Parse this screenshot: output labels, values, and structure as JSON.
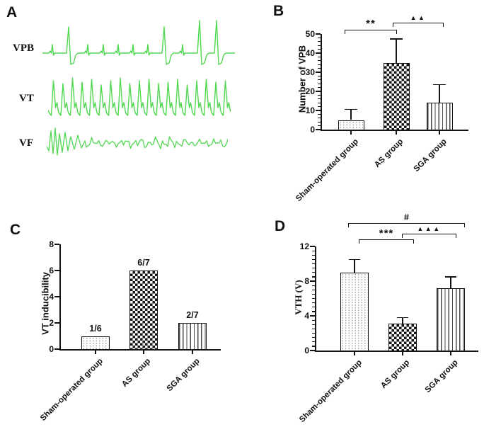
{
  "figure": {
    "background": "#ffffff",
    "axis_color": "#141414",
    "panels": {
      "a": {
        "letter": "A",
        "trace_color": "#50d750",
        "traces": [
          {
            "name": "VPB"
          },
          {
            "name": "VT"
          },
          {
            "name": "VF"
          }
        ]
      },
      "b": {
        "letter": "B"
      },
      "c": {
        "letter": "C"
      },
      "d": {
        "letter": "D"
      }
    }
  },
  "chart_data": [
    {
      "id": "b",
      "type": "bar",
      "panel": "B",
      "title": "",
      "xlabel": "",
      "ylabel": "Number of VPB",
      "categories": [
        "Sham-operated group",
        "AS group",
        "SGA group"
      ],
      "values": [
        5,
        35,
        14
      ],
      "errors_upper": [
        5.5,
        12.5,
        9.5
      ],
      "ylim": [
        0,
        50
      ],
      "yticks": [
        0,
        10,
        20,
        30,
        40,
        50
      ],
      "y_minor_step": 2,
      "grid": false,
      "bar_patterns": [
        "dots",
        "checker",
        "vlines"
      ],
      "significance": [
        {
          "groups": [
            0,
            1
          ],
          "label": "**"
        },
        {
          "groups": [
            1,
            2
          ],
          "label": "▲▲"
        }
      ]
    },
    {
      "id": "c",
      "type": "bar",
      "panel": "C",
      "title": "",
      "xlabel": "",
      "ylabel": "VT inducibility",
      "categories": [
        "Sham-operated group",
        "AS group",
        "SGA  group"
      ],
      "values": [
        1,
        6,
        2
      ],
      "bar_labels": [
        "1/6",
        "6/7",
        "2/7"
      ],
      "ylim": [
        0,
        8
      ],
      "yticks": [
        0,
        2,
        4,
        6,
        8
      ],
      "grid": false,
      "bar_patterns": [
        "dots",
        "checker",
        "vlines"
      ],
      "significance": []
    },
    {
      "id": "d",
      "type": "bar",
      "panel": "D",
      "title": "",
      "xlabel": "",
      "ylabel": "VTH (V)",
      "categories": [
        "Sham-operated group",
        "AS group",
        "SGA  group"
      ],
      "values": [
        9,
        3.1,
        7.2
      ],
      "errors_upper": [
        1.5,
        0.7,
        1.3
      ],
      "ylim": [
        0,
        12
      ],
      "yticks": [
        0,
        4,
        8,
        12
      ],
      "y_minor_step": 0.5,
      "grid": false,
      "bar_patterns": [
        "dots",
        "checker",
        "vlines"
      ],
      "significance": [
        {
          "groups": [
            0,
            2
          ],
          "label": "#"
        },
        {
          "groups": [
            1,
            2
          ],
          "label": "▲▲▲"
        },
        {
          "groups": [
            0,
            1
          ],
          "label": "***"
        }
      ]
    }
  ]
}
